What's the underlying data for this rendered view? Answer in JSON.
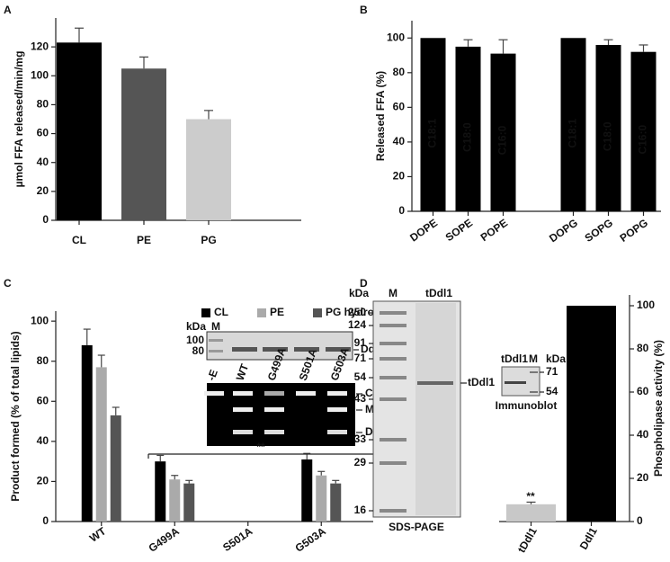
{
  "chart_data": [
    {
      "panel": "A",
      "type": "bar",
      "ylabel": "µmol FFA released/min/mg",
      "categories": [
        "CL",
        "PE",
        "PG"
      ],
      "values": [
        123,
        105,
        70
      ],
      "errors": [
        10,
        8,
        6
      ],
      "colors": [
        "#000000",
        "#555555",
        "#cccccc"
      ],
      "ylim": [
        0,
        140
      ],
      "yticks": [
        0,
        20,
        40,
        60,
        80,
        100,
        120
      ]
    },
    {
      "panel": "B",
      "type": "bar",
      "ylabel": "Released FFA (%)",
      "categories": [
        "DOPE",
        "SOPE",
        "POPE",
        null,
        "DOPG",
        "SOPG",
        "POPG"
      ],
      "values": [
        100,
        95,
        91,
        null,
        100,
        96,
        92
      ],
      "errors": [
        null,
        4,
        8,
        null,
        null,
        3,
        4
      ],
      "bar_labels": [
        "C18:1",
        "C18:0",
        "C16:0",
        null,
        "C18:1",
        "C18:0",
        "C16:0"
      ],
      "color": "#000000",
      "ylim": [
        0,
        110
      ],
      "yticks": [
        0,
        20,
        40,
        60,
        80,
        100
      ]
    },
    {
      "panel": "C",
      "type": "grouped_bar",
      "ylabel": "Product formed (% of total lipids)",
      "categories": [
        "WT",
        "G499A",
        "S501A",
        "G503A"
      ],
      "legend": "top",
      "series": [
        {
          "name": "CL",
          "color": "#000000",
          "values": [
            88,
            30,
            0,
            31
          ],
          "errors": [
            8,
            3,
            null,
            3
          ]
        },
        {
          "name": "PE",
          "color": "#aaaaaa",
          "values": [
            77,
            21,
            0,
            23
          ],
          "errors": [
            6,
            2,
            null,
            2
          ]
        },
        {
          "name": "PG hydrolysis",
          "color": "#555555",
          "values": [
            53,
            19,
            0,
            19
          ],
          "errors": [
            4,
            1.5,
            null,
            1.5
          ]
        }
      ],
      "ylim": [
        0,
        105
      ],
      "yticks": [
        0,
        20,
        40,
        60,
        80,
        100
      ],
      "annotation": "**",
      "inset": {
        "kda": "kDa",
        "marker_lane": "M",
        "markers": [
          100,
          80
        ],
        "band": "Ddl1",
        "lanes": [
          "-E",
          "WT",
          "G499A",
          "S501A",
          "G503A"
        ],
        "products": [
          "CL",
          "MLCL",
          "DLCL"
        ]
      }
    },
    {
      "panel": "D",
      "type": "bar",
      "axis": "y2",
      "y2label": "Phospholipase activity (%)",
      "categories": [
        "tDdl1",
        "Ddl1"
      ],
      "values": [
        8,
        100
      ],
      "errors": [
        1,
        null
      ],
      "colors": [
        "#c8c8c8",
        "#000000"
      ],
      "annotation": "**",
      "y2lim": [
        0,
        105
      ],
      "y2ticks": [
        0,
        20,
        40,
        60,
        80,
        100
      ],
      "gel": {
        "kda": "kDa",
        "lanes": [
          "M",
          "tDdl1"
        ],
        "markers": [
          250,
          124,
          91,
          71,
          54,
          43,
          33,
          29,
          16
        ],
        "band": "tDdl1",
        "caption": "SDS-PAGE",
        "blot": {
          "lanes": [
            "tDdl1",
            "M"
          ],
          "kda": "kDa",
          "markers": [
            71,
            54
          ],
          "caption": "Immunoblot"
        }
      }
    }
  ]
}
